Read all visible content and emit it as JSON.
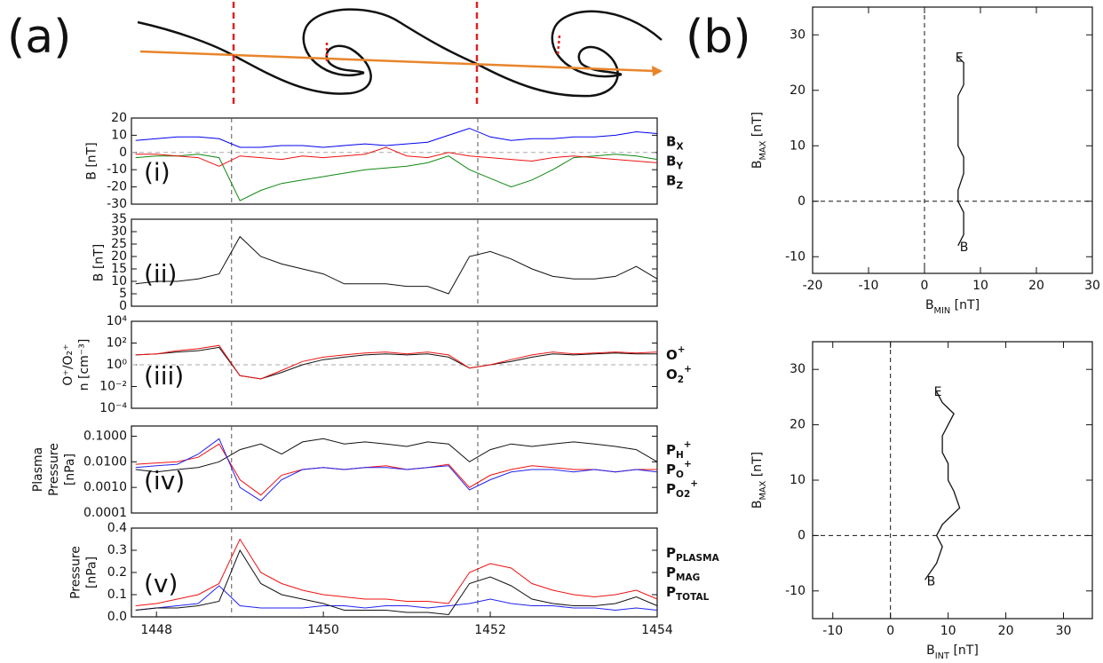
{
  "panel_labels": [
    "(a)",
    "(b)"
  ],
  "chart_data": [
    {
      "type": "line",
      "panel_label": "(i)",
      "ylabel": [
        "B [nT]"
      ],
      "log_y": false,
      "x": [
        1447.75,
        1448,
        1448.25,
        1448.5,
        1448.75,
        1449,
        1449.25,
        1449.5,
        1449.75,
        1450,
        1450.25,
        1450.5,
        1450.75,
        1451,
        1451.25,
        1451.5,
        1451.75,
        1452,
        1452.25,
        1452.5,
        1452.75,
        1453,
        1453.25,
        1453.5,
        1453.75,
        1454
      ],
      "xlim": [
        1447.7,
        1454
      ],
      "ylim": [
        -30,
        20
      ],
      "yticks": [
        -30,
        -20,
        -10,
        0,
        10,
        20
      ],
      "hline": 0,
      "vlines": [
        1448.9,
        1451.85
      ],
      "series": [
        {
          "name": "BX",
          "color": "#0000ee",
          "values": [
            7,
            8,
            9,
            9,
            8,
            3,
            3,
            4,
            4,
            3,
            4,
            5,
            4,
            5,
            6,
            10,
            14,
            9,
            7,
            8,
            8,
            9,
            9,
            10,
            12,
            11
          ]
        },
        {
          "name": "BY",
          "color": "#118811",
          "values": [
            -3,
            -2,
            -2,
            -1,
            -3,
            -28,
            -22,
            -18,
            -16,
            -14,
            -12,
            -10,
            -9,
            -8,
            -6,
            -2,
            -10,
            -15,
            -20,
            -16,
            -10,
            -3,
            -2,
            -1,
            -2,
            -4
          ]
        },
        {
          "name": "BZ",
          "color": "#ee1111",
          "values": [
            -1,
            -1,
            -2,
            -3,
            -8,
            -2,
            -3,
            -4,
            -2,
            -3,
            -2,
            -1,
            3,
            -2,
            -3,
            0,
            -2,
            -3,
            -4,
            -5,
            -3,
            -2,
            -3,
            -4,
            -5,
            -6
          ]
        }
      ]
    },
    {
      "type": "line",
      "panel_label": "(ii)",
      "ylabel": [
        "B [nT]"
      ],
      "log_y": false,
      "x": [
        1447.75,
        1448,
        1448.25,
        1448.5,
        1448.75,
        1449,
        1449.25,
        1449.5,
        1449.75,
        1450,
        1450.25,
        1450.5,
        1450.75,
        1451,
        1451.25,
        1451.5,
        1451.75,
        1452,
        1452.25,
        1452.5,
        1452.75,
        1453,
        1453.25,
        1453.5,
        1453.75,
        1454
      ],
      "xlim": [
        1447.7,
        1454
      ],
      "ylim": [
        0,
        35
      ],
      "yticks": [
        0,
        5,
        10,
        15,
        20,
        25,
        30,
        35
      ],
      "vlines": [
        1448.9,
        1451.85
      ],
      "series": [
        {
          "color": "#111111",
          "values": [
            9,
            10,
            10,
            11,
            13,
            28,
            20,
            17,
            15,
            13,
            9,
            9,
            9,
            8,
            8,
            5,
            20,
            22,
            19,
            15,
            12,
            11,
            11,
            12,
            16,
            11
          ]
        }
      ]
    },
    {
      "type": "line",
      "panel_label": "(iii)",
      "ylabel": [
        "O⁺/O₂⁺",
        "n [cm⁻³]"
      ],
      "log_y": true,
      "x": [
        1447.75,
        1448,
        1448.25,
        1448.5,
        1448.75,
        1449,
        1449.25,
        1449.5,
        1449.75,
        1450,
        1450.25,
        1450.5,
        1450.75,
        1451,
        1451.25,
        1451.5,
        1451.75,
        1452,
        1452.25,
        1452.5,
        1452.75,
        1453,
        1453.25,
        1453.5,
        1453.75,
        1454
      ],
      "xlim": [
        1447.7,
        1454
      ],
      "ylim": [
        0.0001,
        10000
      ],
      "yticks": [
        {
          "value": 0.0001,
          "label": "10⁻⁴"
        },
        {
          "value": 0.01,
          "label": "10⁻²"
        },
        {
          "value": 1,
          "label": "10⁰"
        },
        {
          "value": 100,
          "label": "10²"
        },
        {
          "value": 10000,
          "label": "10⁴"
        }
      ],
      "hline": 1,
      "vlines": [
        1448.9,
        1451.85
      ],
      "series": [
        {
          "name": "O+",
          "color": "#111111",
          "values": [
            8,
            10,
            15,
            20,
            40,
            0.1,
            0.05,
            0.2,
            1,
            3,
            5,
            8,
            10,
            8,
            10,
            5,
            0.5,
            1,
            2,
            5,
            10,
            8,
            10,
            12,
            10,
            10
          ]
        },
        {
          "name": "O2+",
          "color": "#ee1111",
          "values": [
            8,
            10,
            20,
            30,
            60,
            0.1,
            0.05,
            0.3,
            2,
            5,
            8,
            12,
            15,
            10,
            15,
            8,
            0.5,
            1,
            3,
            8,
            15,
            10,
            12,
            15,
            12,
            15
          ]
        }
      ]
    },
    {
      "type": "line",
      "panel_label": "(iv)",
      "ylabel": [
        "Plasma",
        "Pressure",
        "[nPa]"
      ],
      "log_y": true,
      "x": [
        1447.75,
        1448,
        1448.25,
        1448.5,
        1448.75,
        1449,
        1449.25,
        1449.5,
        1449.75,
        1450,
        1450.25,
        1450.5,
        1450.75,
        1451,
        1451.25,
        1451.5,
        1451.75,
        1452,
        1452.25,
        1452.5,
        1452.75,
        1453,
        1453.25,
        1453.5,
        1453.75,
        1454
      ],
      "xlim": [
        1447.7,
        1454
      ],
      "ylim": [
        0.0001,
        0.25
      ],
      "yticks": [
        0.0001,
        {
          "value": 0.001,
          "label": "0.0010"
        },
        {
          "value": 0.01,
          "label": "0.0100"
        },
        {
          "value": 0.1,
          "label": "0.1000"
        }
      ],
      "vlines": [
        1448.9,
        1451.85
      ],
      "series": [
        {
          "name": "PH+",
          "color": "#111111",
          "values": [
            0.005,
            0.004,
            0.005,
            0.006,
            0.01,
            0.03,
            0.05,
            0.02,
            0.06,
            0.08,
            0.05,
            0.06,
            0.05,
            0.04,
            0.06,
            0.05,
            0.01,
            0.03,
            0.05,
            0.04,
            0.05,
            0.06,
            0.05,
            0.04,
            0.03,
            0.01
          ]
        },
        {
          "name": "PO+",
          "color": "#ee1111",
          "values": [
            0.008,
            0.009,
            0.01,
            0.015,
            0.05,
            0.002,
            0.0005,
            0.003,
            0.005,
            0.006,
            0.005,
            0.006,
            0.007,
            0.005,
            0.006,
            0.008,
            0.001,
            0.003,
            0.005,
            0.007,
            0.006,
            0.005,
            0.005,
            0.004,
            0.005,
            0.005
          ]
        },
        {
          "name": "PO2+",
          "color": "#2222ee",
          "values": [
            0.006,
            0.007,
            0.008,
            0.02,
            0.08,
            0.001,
            0.0003,
            0.002,
            0.005,
            0.006,
            0.005,
            0.006,
            0.006,
            0.005,
            0.006,
            0.007,
            0.0008,
            0.002,
            0.004,
            0.005,
            0.005,
            0.004,
            0.005,
            0.004,
            0.005,
            0.004
          ]
        }
      ]
    },
    {
      "type": "line",
      "panel_label": "(v)",
      "ylabel": [
        "Pressure",
        "[nPa]"
      ],
      "log_y": false,
      "x": [
        1447.75,
        1448,
        1448.25,
        1448.5,
        1448.75,
        1449,
        1449.25,
        1449.5,
        1449.75,
        1450,
        1450.25,
        1450.5,
        1450.75,
        1451,
        1451.25,
        1451.5,
        1451.75,
        1452,
        1452.25,
        1452.5,
        1452.75,
        1453,
        1453.25,
        1453.5,
        1453.75,
        1454
      ],
      "xlim": [
        1447.7,
        1454
      ],
      "ylim": [
        0,
        0.4
      ],
      "yticks": [
        {
          "value": 0,
          "label": "0.0"
        },
        0.1,
        0.2,
        0.3,
        0.4
      ],
      "xticks": [
        1448,
        1450,
        1452,
        1454
      ],
      "vlines": [
        1448.9,
        1451.85
      ],
      "series": [
        {
          "name": "PPLASMA",
          "color": "#2222ee",
          "values": [
            0.03,
            0.04,
            0.05,
            0.06,
            0.14,
            0.05,
            0.04,
            0.04,
            0.04,
            0.05,
            0.05,
            0.04,
            0.05,
            0.05,
            0.04,
            0.05,
            0.06,
            0.08,
            0.06,
            0.05,
            0.05,
            0.04,
            0.04,
            0.03,
            0.04,
            0.03
          ]
        },
        {
          "name": "PMAG",
          "color": "#111111",
          "values": [
            0.03,
            0.04,
            0.04,
            0.05,
            0.07,
            0.3,
            0.15,
            0.1,
            0.08,
            0.06,
            0.03,
            0.03,
            0.03,
            0.02,
            0.02,
            0.01,
            0.15,
            0.18,
            0.14,
            0.08,
            0.06,
            0.05,
            0.05,
            0.06,
            0.09,
            0.05
          ]
        },
        {
          "name": "PTOTAL",
          "color": "#ee1111",
          "values": [
            0.05,
            0.06,
            0.08,
            0.1,
            0.15,
            0.35,
            0.2,
            0.15,
            0.12,
            0.1,
            0.09,
            0.08,
            0.08,
            0.07,
            0.07,
            0.06,
            0.2,
            0.24,
            0.22,
            0.15,
            0.12,
            0.1,
            0.09,
            0.1,
            0.12,
            0.08
          ]
        }
      ]
    },
    {
      "type": "hodogram",
      "xlabel": "BMIN [nT]",
      "ylabel": "BMAX [nT]",
      "color": "#111111",
      "xlim": [
        -20,
        30
      ],
      "ylim": [
        -13,
        35
      ],
      "xticks": [
        -20,
        -10,
        0,
        10,
        20,
        30
      ],
      "yticks": [
        -10,
        0,
        10,
        20,
        30
      ],
      "hline": 0,
      "vline": 0,
      "x": [
        6,
        7,
        7,
        6,
        6,
        7,
        7,
        6,
        6,
        6,
        6,
        7,
        7,
        7,
        6
      ],
      "values": [
        -8,
        -6,
        -2,
        0,
        2,
        5,
        8,
        10,
        13,
        16,
        19,
        21,
        23,
        25,
        26
      ],
      "annotations": [
        "B",
        "E"
      ]
    },
    {
      "type": "hodogram",
      "xlabel": "BINT [nT]",
      "ylabel": "BMAX [nT]",
      "color": "#111111",
      "xlim": [
        -13.5,
        35
      ],
      "ylim": [
        -15,
        35
      ],
      "xticks": [
        -10,
        0,
        10,
        20,
        30
      ],
      "yticks": [
        -10,
        0,
        10,
        20,
        30
      ],
      "hline": 0,
      "vline": 0,
      "x": [
        6,
        8,
        9,
        8,
        9,
        12,
        11,
        10,
        10,
        9,
        9,
        10,
        11,
        9,
        8
      ],
      "values": [
        -8,
        -5,
        -2,
        0,
        2,
        5,
        8,
        10,
        13,
        15,
        18,
        20,
        22,
        24,
        26
      ],
      "annotations": [
        "B",
        "E"
      ]
    }
  ]
}
